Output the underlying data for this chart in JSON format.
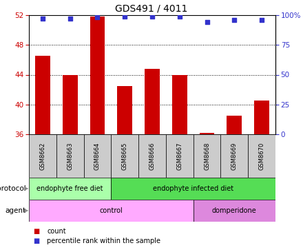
{
  "title": "GDS491 / 4011",
  "samples": [
    "GSM8662",
    "GSM8663",
    "GSM8664",
    "GSM8665",
    "GSM8666",
    "GSM8667",
    "GSM8668",
    "GSM8669",
    "GSM8670"
  ],
  "counts": [
    46.5,
    44.0,
    51.8,
    42.5,
    44.8,
    44.0,
    36.2,
    38.5,
    40.5
  ],
  "percentile_ranks": [
    97,
    97,
    98,
    99,
    99,
    99,
    94,
    96,
    96
  ],
  "ylim_left": [
    36,
    52
  ],
  "ylim_right": [
    0,
    100
  ],
  "yticks_left": [
    36,
    40,
    44,
    48,
    52
  ],
  "yticks_right": [
    0,
    25,
    50,
    75,
    100
  ],
  "bar_color": "#cc0000",
  "dot_color": "#3333cc",
  "bar_bottom": 36,
  "protocol_groups": [
    {
      "label": "endophyte free diet",
      "start": 0,
      "end": 3,
      "color": "#aaffaa"
    },
    {
      "label": "endophyte infected diet",
      "start": 3,
      "end": 9,
      "color": "#55dd55"
    }
  ],
  "agent_groups": [
    {
      "label": "control",
      "start": 0,
      "end": 6,
      "color": "#ffaaff"
    },
    {
      "label": "domperidone",
      "start": 6,
      "end": 9,
      "color": "#dd88dd"
    }
  ],
  "legend_count_color": "#cc0000",
  "legend_dot_color": "#3333cc",
  "axis_label_color_left": "#cc0000",
  "axis_label_color_right": "#3333cc",
  "grid_color": "#000000",
  "sample_box_color": "#cccccc",
  "bg_color": "#ffffff"
}
